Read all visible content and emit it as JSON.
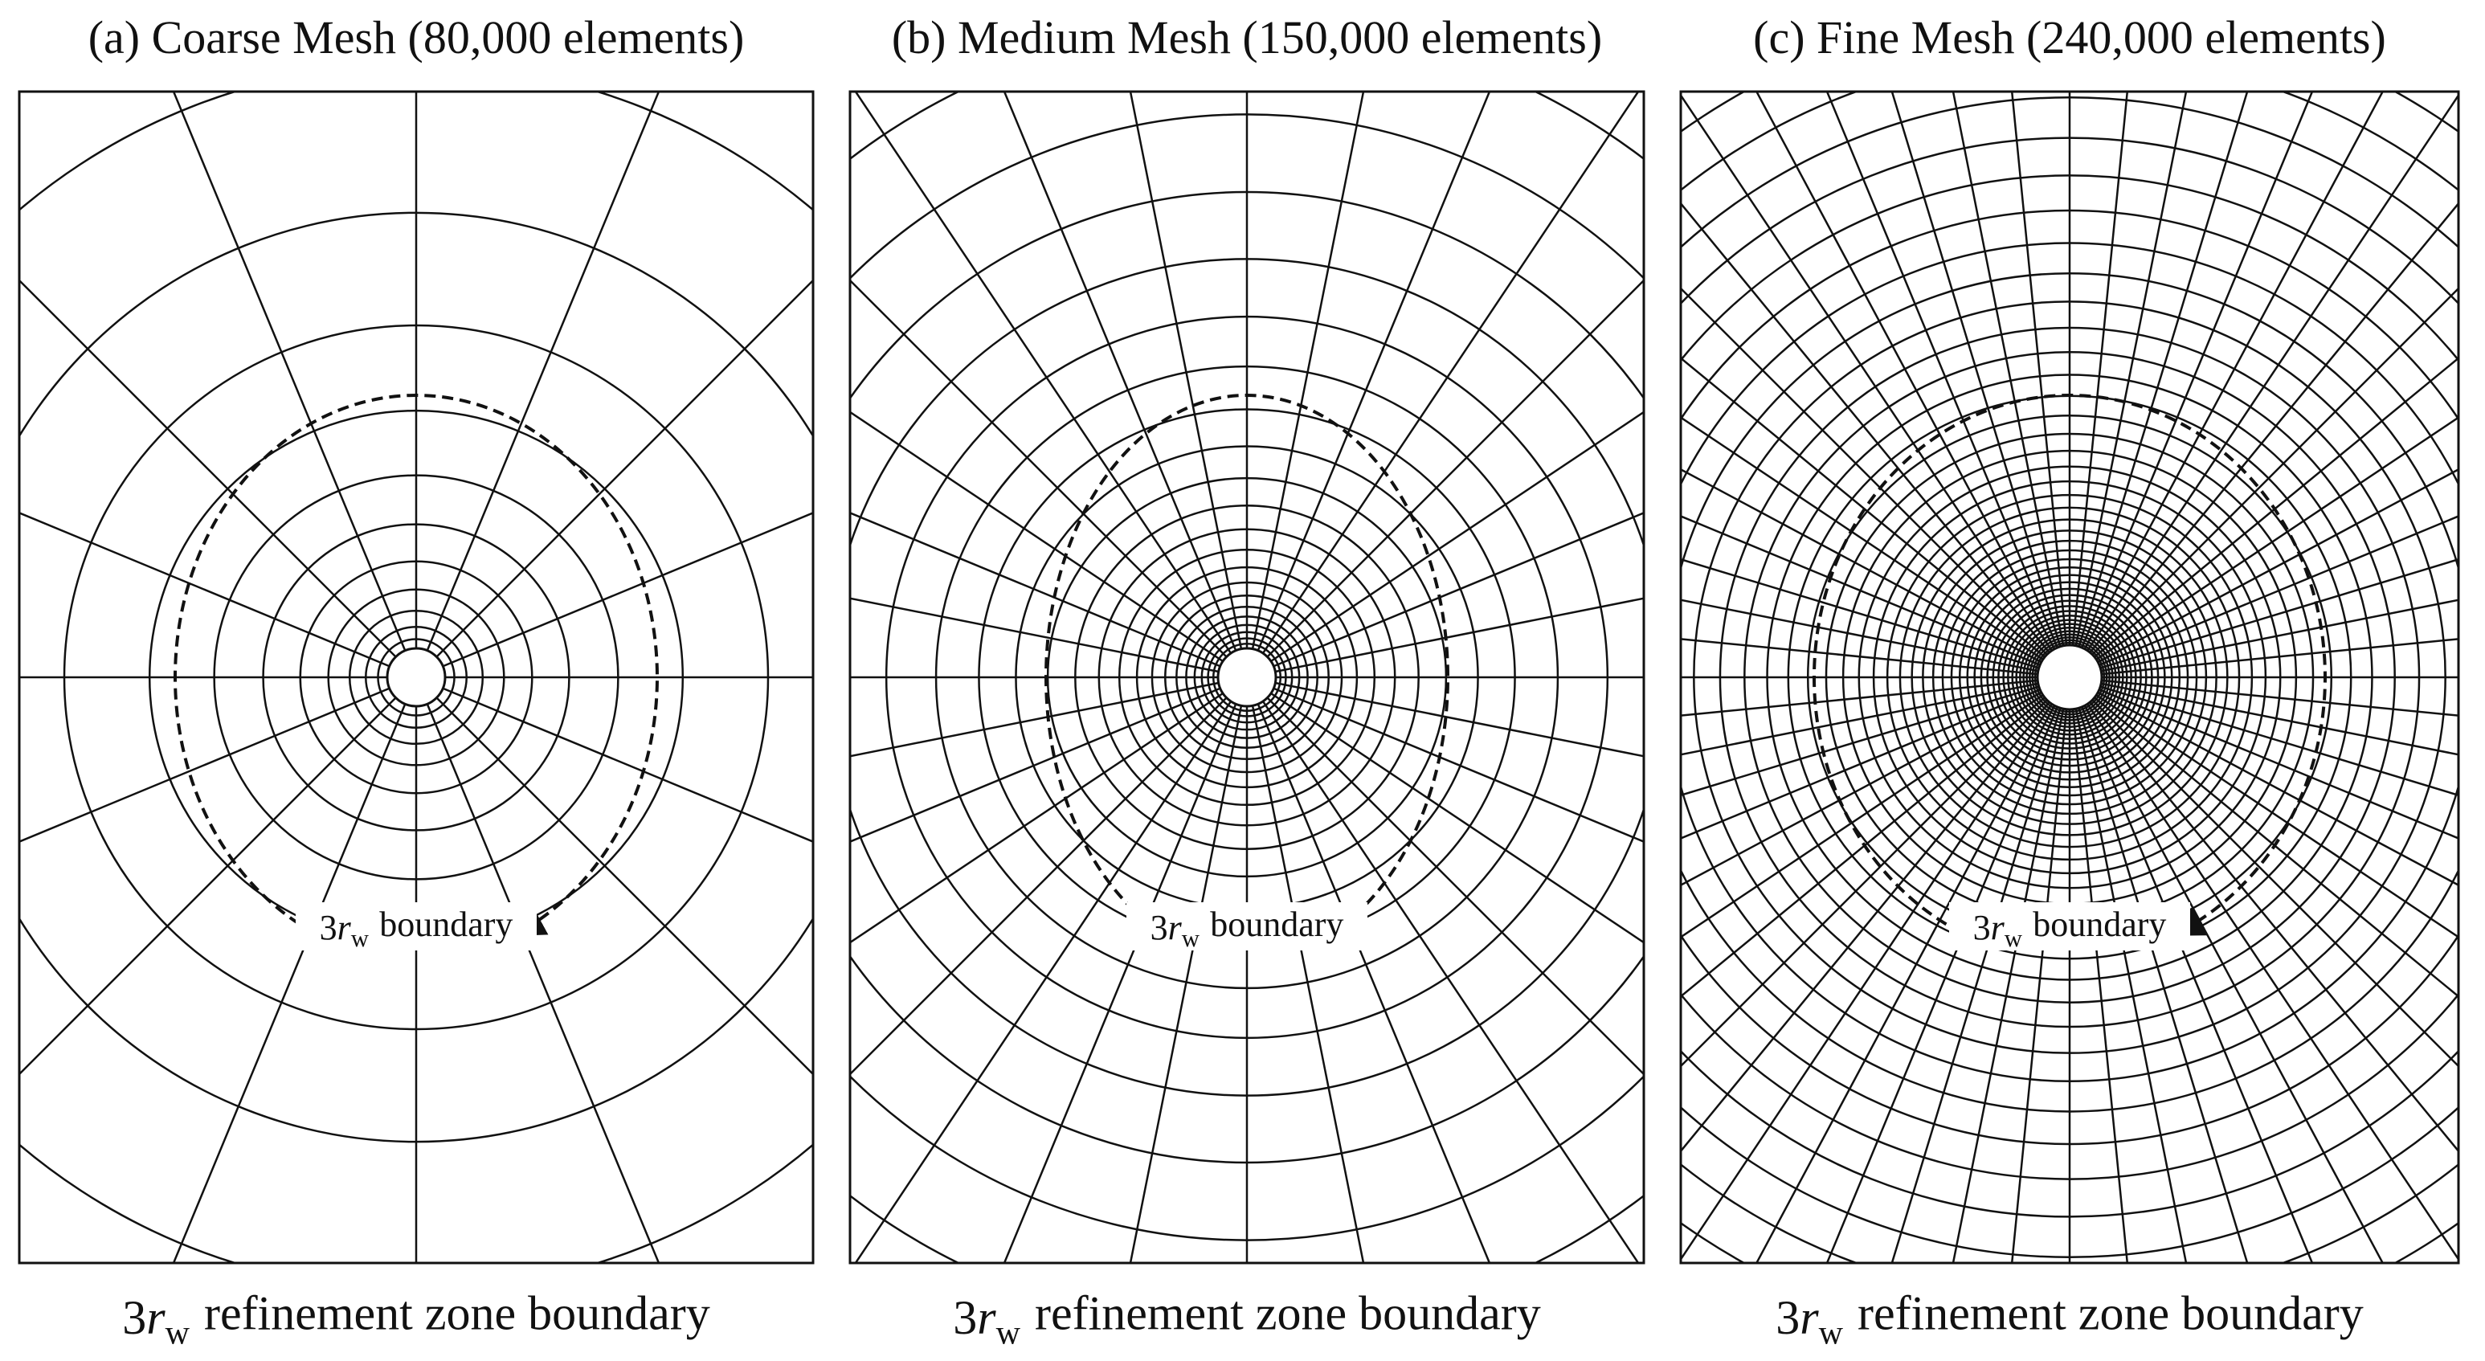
{
  "panels": [
    {
      "title": "(a) Coarse Mesh (80,000 elements)",
      "boundary_label": {
        "coefficient": "3",
        "symbol": "r",
        "subscript": "w",
        "text": "boundary"
      },
      "caption": {
        "coefficient": "3",
        "symbol": "r",
        "subscript": "w",
        "text": "refinement zone boundary"
      }
    },
    {
      "title": "(b) Medium Mesh (150,000 elements)",
      "boundary_label": {
        "coefficient": "3",
        "symbol": "r",
        "subscript": "w",
        "text": "boundary"
      },
      "caption": {
        "coefficient": "3",
        "symbol": "r",
        "subscript": "w",
        "text": "refinement zone boundary"
      }
    },
    {
      "title": "(c) Fine Mesh (240,000 elements)",
      "boundary_label": {
        "coefficient": "3",
        "symbol": "r",
        "subscript": "w",
        "text": "boundary"
      },
      "caption": {
        "coefficient": "3",
        "symbol": "r",
        "subscript": "w",
        "text": "refinement zone boundary"
      }
    }
  ]
}
